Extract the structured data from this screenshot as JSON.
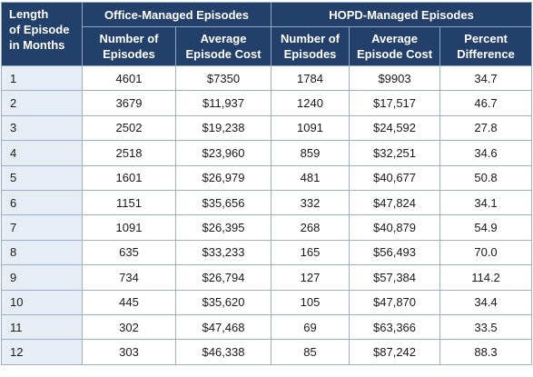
{
  "table": {
    "header": {
      "corner": [
        "Length",
        "of Episode",
        "in Months"
      ],
      "office_group": "Office-Managed Episodes",
      "hopd_group": "HOPD-Managed Episodes",
      "office_cols": [
        [
          "Number of",
          "Episodes"
        ],
        [
          "Average",
          "Episode Cost"
        ]
      ],
      "hopd_cols": [
        [
          "Number of",
          "Episodes"
        ],
        [
          "Average",
          "Episode Cost"
        ],
        [
          "Percent",
          "Difference"
        ]
      ]
    },
    "rows": [
      [
        "1",
        "4601",
        "$7350",
        "1784",
        "$9903",
        "34.7"
      ],
      [
        "2",
        "3679",
        "$11,937",
        "1240",
        "$17,517",
        "46.7"
      ],
      [
        "3",
        "2502",
        "$19,238",
        "1091",
        "$24,592",
        "27.8"
      ],
      [
        "4",
        "2518",
        "$23,960",
        "859",
        "$32,251",
        "34.6"
      ],
      [
        "5",
        "1601",
        "$26,979",
        "481",
        "$40,677",
        "50.8"
      ],
      [
        "6",
        "1151",
        "$35,656",
        "332",
        "$47,824",
        "34.1"
      ],
      [
        "7",
        "1091",
        "$26,395",
        "268",
        "$40,879",
        "54.9"
      ],
      [
        "8",
        "635",
        "$33,233",
        "165",
        "$56,493",
        "70.0"
      ],
      [
        "9",
        "734",
        "$26,794",
        "127",
        "$57,384",
        "114.2"
      ],
      [
        "10",
        "445",
        "$35,620",
        "105",
        "$47,870",
        "34.4"
      ],
      [
        "11",
        "302",
        "$47,468",
        "69",
        "$63,366",
        "33.5"
      ],
      [
        "12",
        "303",
        "$46,338",
        "85",
        "$87,242",
        "88.3"
      ]
    ]
  }
}
